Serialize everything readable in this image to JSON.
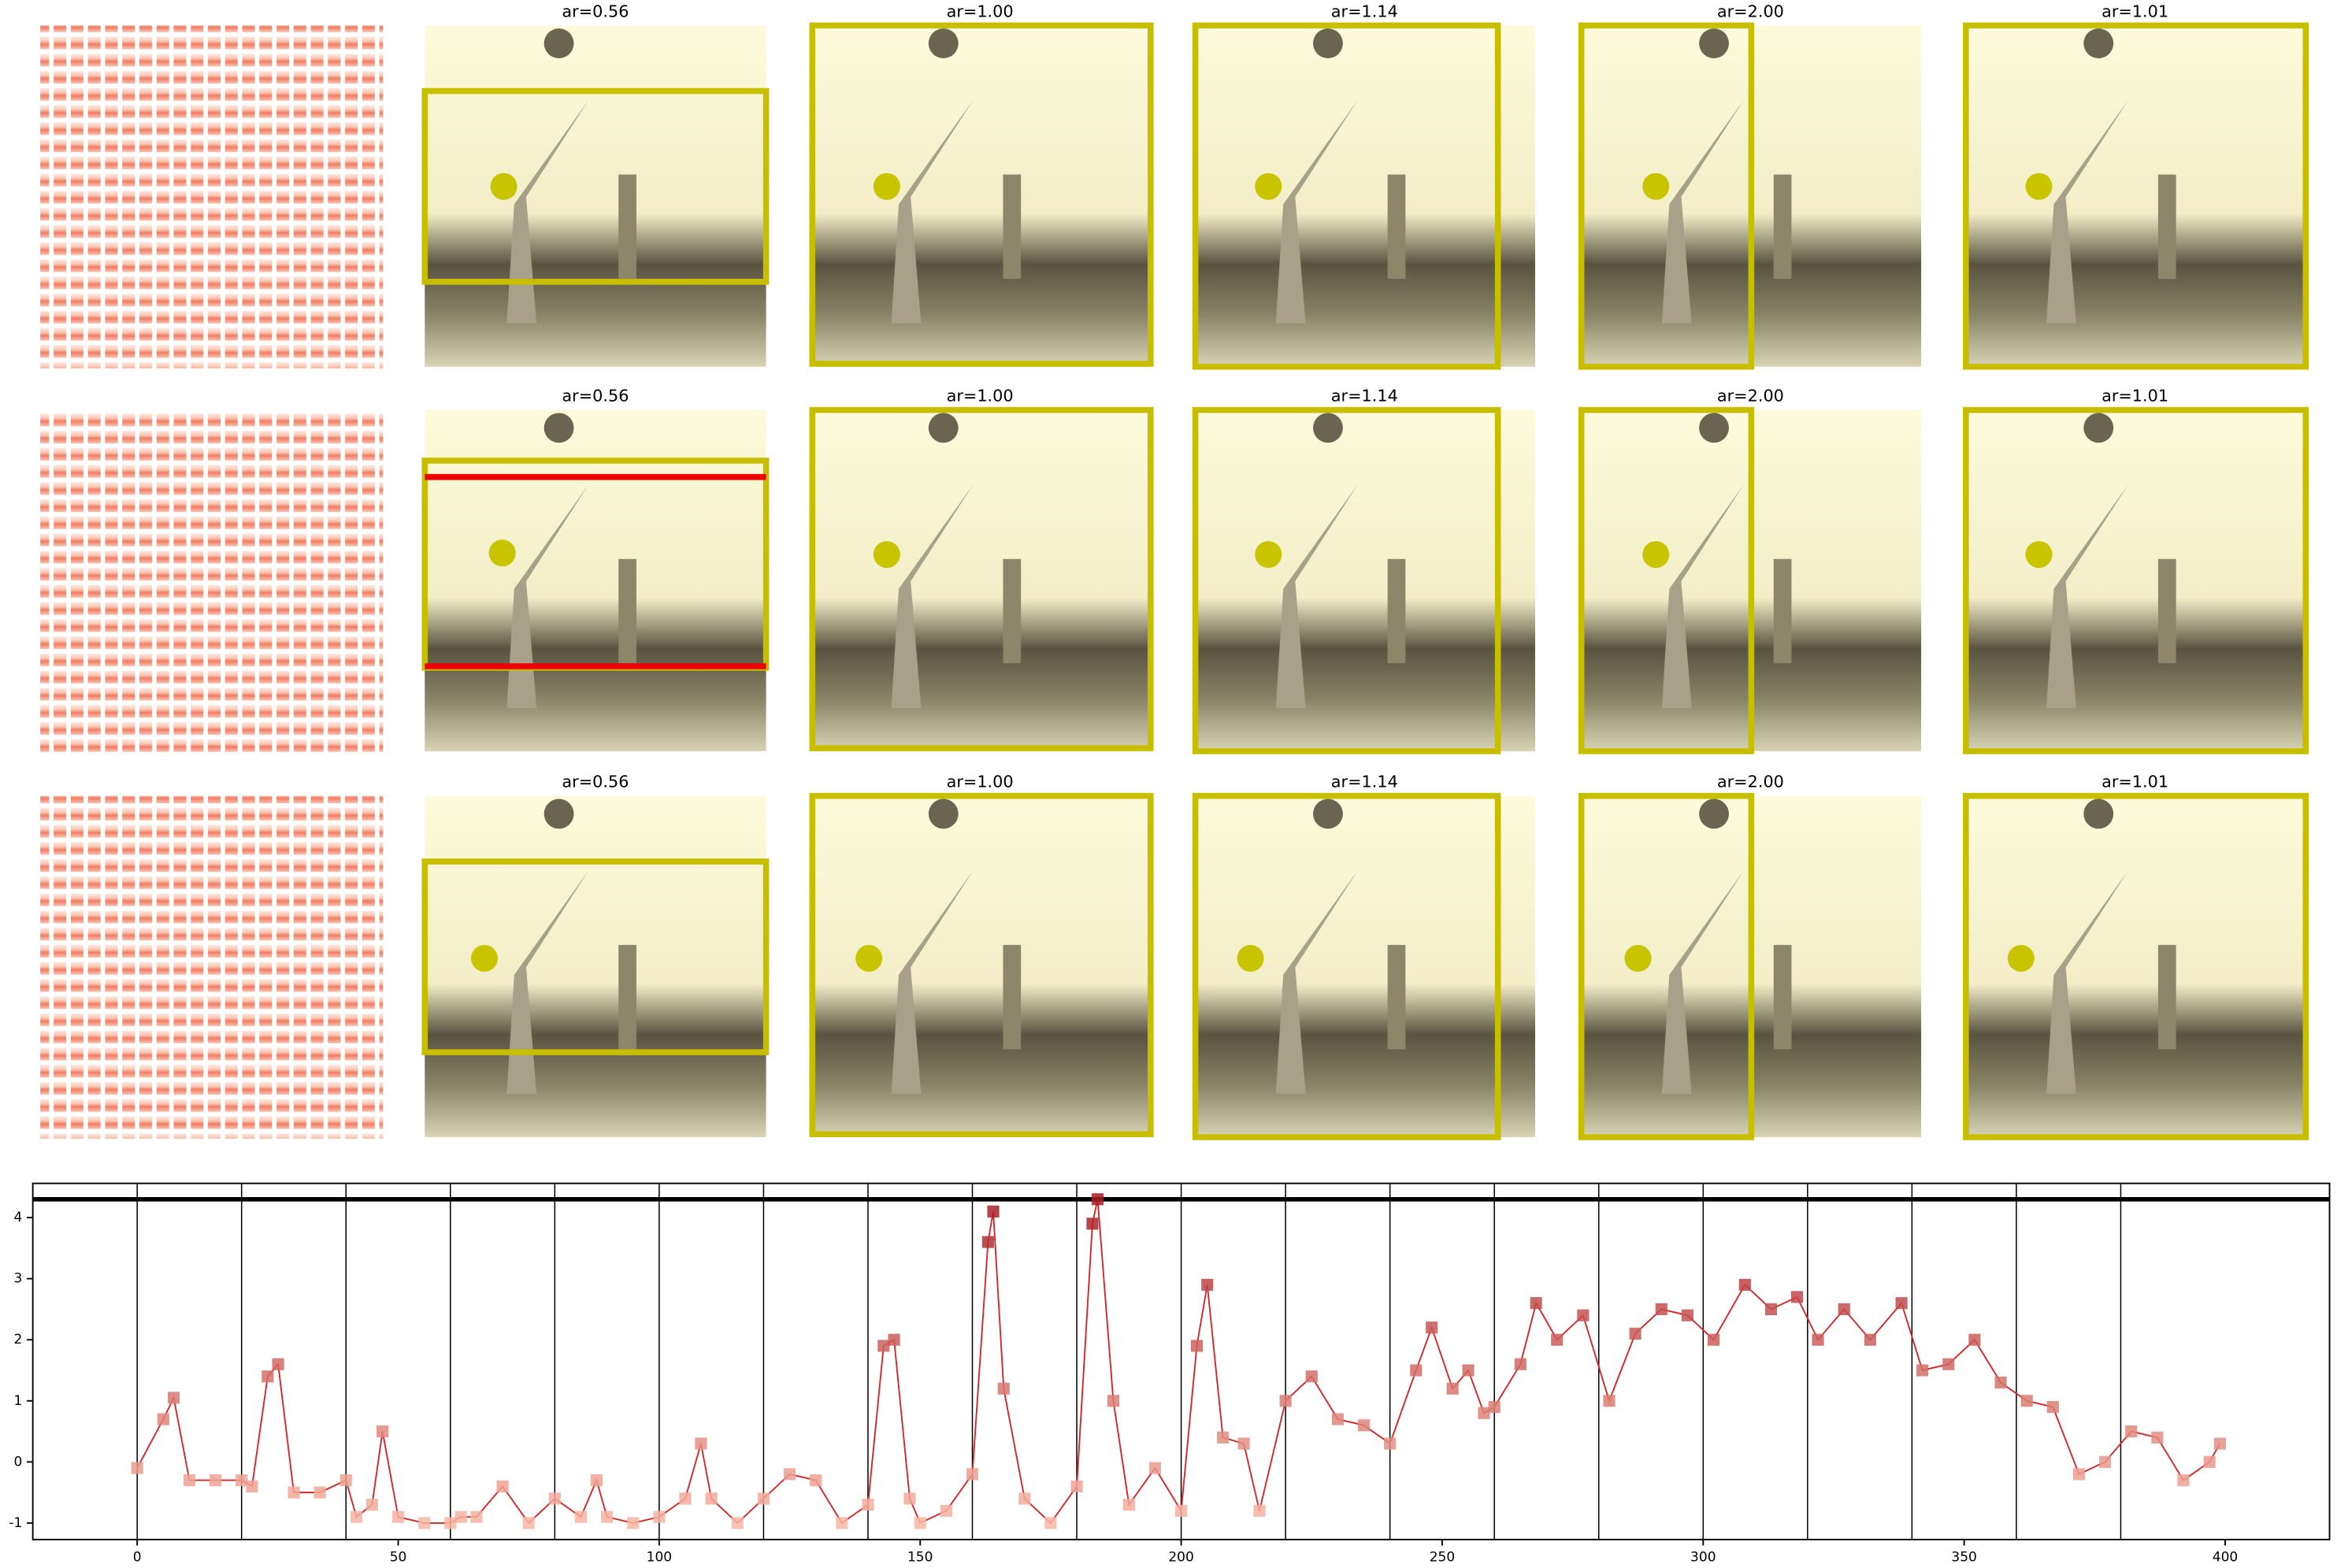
{
  "panels": [
    [
      "ar=0.56",
      "ar=1.00",
      "ar=1.14",
      "ar=2.00",
      "ar=1.01"
    ],
    [
      "ar=0.56",
      "ar=1.00",
      "ar=1.14",
      "ar=2.00",
      "ar=1.01"
    ],
    [
      "ar=0.56",
      "ar=1.00",
      "ar=1.14",
      "ar=2.00",
      "ar=1.01"
    ]
  ],
  "chart_data": {
    "type": "line",
    "x": [
      0,
      5,
      7,
      10,
      15,
      20,
      22,
      25,
      27,
      30,
      35,
      40,
      42,
      45,
      47,
      50,
      55,
      60,
      62,
      65,
      70,
      75,
      80,
      85,
      88,
      90,
      95,
      100,
      105,
      108,
      110,
      115,
      120,
      125,
      130,
      135,
      140,
      143,
      145,
      148,
      150,
      155,
      160,
      163,
      164,
      166,
      170,
      175,
      180,
      183,
      184,
      187,
      190,
      195,
      200,
      203,
      205,
      208,
      212,
      215,
      220,
      225,
      230,
      235,
      240,
      245,
      248,
      252,
      255,
      258,
      260,
      265,
      268,
      272,
      277,
      282,
      287,
      292,
      297,
      302,
      308,
      313,
      318,
      322,
      327,
      332,
      338,
      342,
      347,
      352,
      357,
      362,
      367,
      372,
      377,
      382,
      387,
      392,
      397,
      399
    ],
    "series": [
      {
        "color": "#d62728",
        "values": [
          -0.1,
          0.7,
          1.05,
          -0.3,
          -0.3,
          -0.3,
          -0.4,
          1.4,
          1.6,
          -0.5,
          -0.5,
          -0.3,
          -0.9,
          -0.7,
          0.5,
          -0.9,
          -1.0,
          -1.0,
          -0.9,
          -0.9,
          -0.4,
          -1.0,
          -0.6,
          -0.9,
          -0.3,
          -0.9,
          -1.0,
          -0.9,
          -0.6,
          0.3,
          -0.6,
          -1.0,
          -0.6,
          -0.2,
          -0.3,
          -1.0,
          -0.7,
          1.9,
          2.0,
          -0.6,
          -1.0,
          -0.8,
          -0.2,
          3.6,
          4.1,
          1.2,
          -0.6,
          -1.0,
          -0.4,
          3.9,
          4.3,
          1.0,
          -0.7,
          -0.1,
          -0.8,
          1.9,
          2.9,
          0.4,
          0.3,
          -0.8,
          1.0,
          1.4,
          0.7,
          0.6,
          0.3,
          1.5,
          2.2,
          1.2,
          1.5,
          0.8,
          0.9,
          1.6,
          2.6,
          2.0,
          2.4,
          1.0,
          2.1,
          2.5,
          2.4,
          2.0,
          2.9,
          2.5,
          2.7,
          2.0,
          2.5,
          2.0,
          2.6,
          1.5,
          1.6,
          2.0,
          1.3,
          1.0,
          0.9,
          -0.2,
          0.0,
          0.5,
          0.4,
          -0.3,
          0.0,
          0.3
        ]
      }
    ],
    "xlim": [
      -20,
      420
    ],
    "ylim": [
      -1.27,
      4.56
    ],
    "xticks": [
      0,
      50,
      100,
      150,
      200,
      250,
      300,
      350,
      400
    ],
    "yticks": [
      -1,
      0,
      1,
      2,
      3,
      4
    ],
    "vlines": [
      0,
      20,
      40,
      60,
      80,
      100,
      120,
      140,
      160,
      180,
      200,
      220,
      240,
      260,
      280,
      300,
      320,
      340,
      360,
      380
    ],
    "hline": 4.3
  }
}
